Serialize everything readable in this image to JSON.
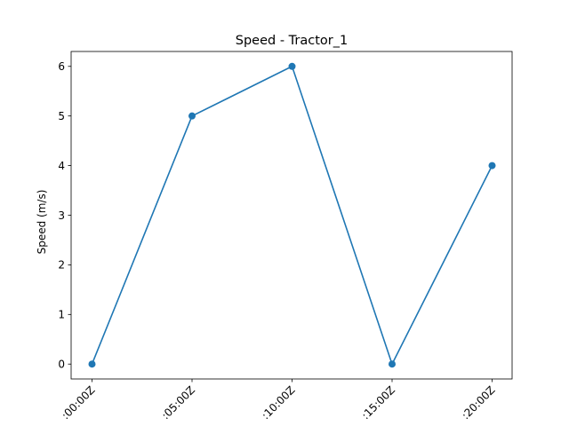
{
  "chart_data": {
    "type": "line",
    "title": "Speed - Tractor_1",
    "xlabel": "",
    "ylabel": "Speed (m/s)",
    "categories": [
      ":00:00Z",
      ":05:00Z",
      ":10:00Z",
      ":15:00Z",
      ":20:00Z"
    ],
    "series": [
      {
        "values": [
          0,
          5,
          6,
          0,
          4
        ],
        "color": "#1f77b4",
        "marker": "circle"
      }
    ],
    "ylim": [
      -0.3,
      6.3
    ],
    "yticks": [
      0,
      1,
      2,
      3,
      4,
      5,
      6
    ],
    "grid": false,
    "legend": "none"
  }
}
